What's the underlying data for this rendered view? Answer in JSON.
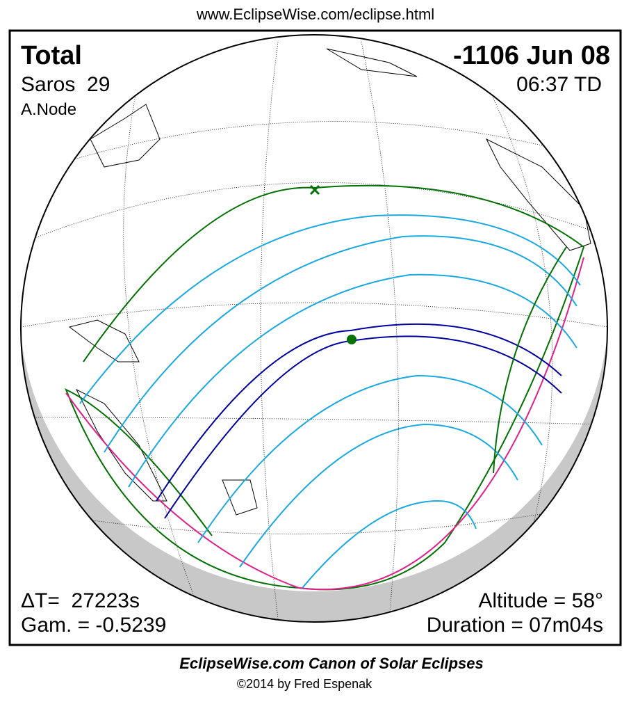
{
  "header": {
    "url": "www.EclipseWise.com/eclipse.html"
  },
  "eclipse": {
    "type": "Total",
    "date": "-1106 Jun 08",
    "saros": "Saros  29",
    "time": "06:37 TD",
    "node": "A.Node",
    "delta_t": "ΔT=  27223s",
    "gamma": "Gam. = -0.5239",
    "altitude": "Altitude = 58°",
    "duration": "Duration = 07m04s"
  },
  "footer": {
    "title": "EclipseWise.com Canon of Solar Eclipses",
    "copyright": "©2014 by Fred Espenak"
  }
}
